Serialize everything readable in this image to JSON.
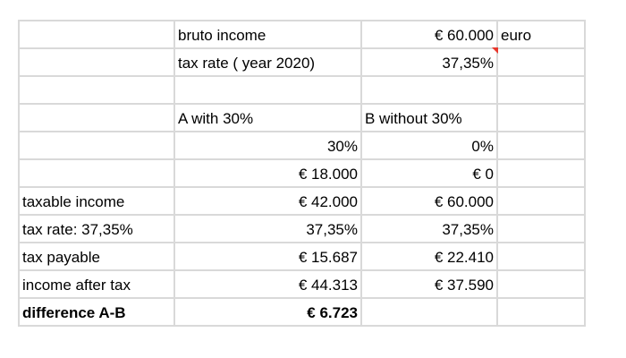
{
  "rows": [
    [
      "",
      "bruto income",
      "€ 60.000",
      "euro"
    ],
    [
      "",
      "tax rate  ( year 2020)",
      "37,35%",
      ""
    ],
    [
      "",
      "",
      "",
      ""
    ],
    [
      "",
      "A with 30%",
      "B without 30%",
      ""
    ],
    [
      "",
      "30%",
      "0%",
      ""
    ],
    [
      "",
      "€ 18.000",
      "€ 0",
      ""
    ],
    [
      "taxable income",
      "€ 42.000",
      "€ 60.000",
      ""
    ],
    [
      "tax rate: 37,35%",
      "37,35%",
      "37,35%",
      ""
    ],
    [
      "tax payable",
      "€ 15.687",
      "€ 22.410",
      ""
    ],
    [
      "income after tax",
      "€ 44.313",
      "€ 37.590",
      ""
    ],
    [
      "difference A-B",
      "€ 6.723",
      "",
      ""
    ]
  ],
  "comment_indicator_color": "#e8372c"
}
